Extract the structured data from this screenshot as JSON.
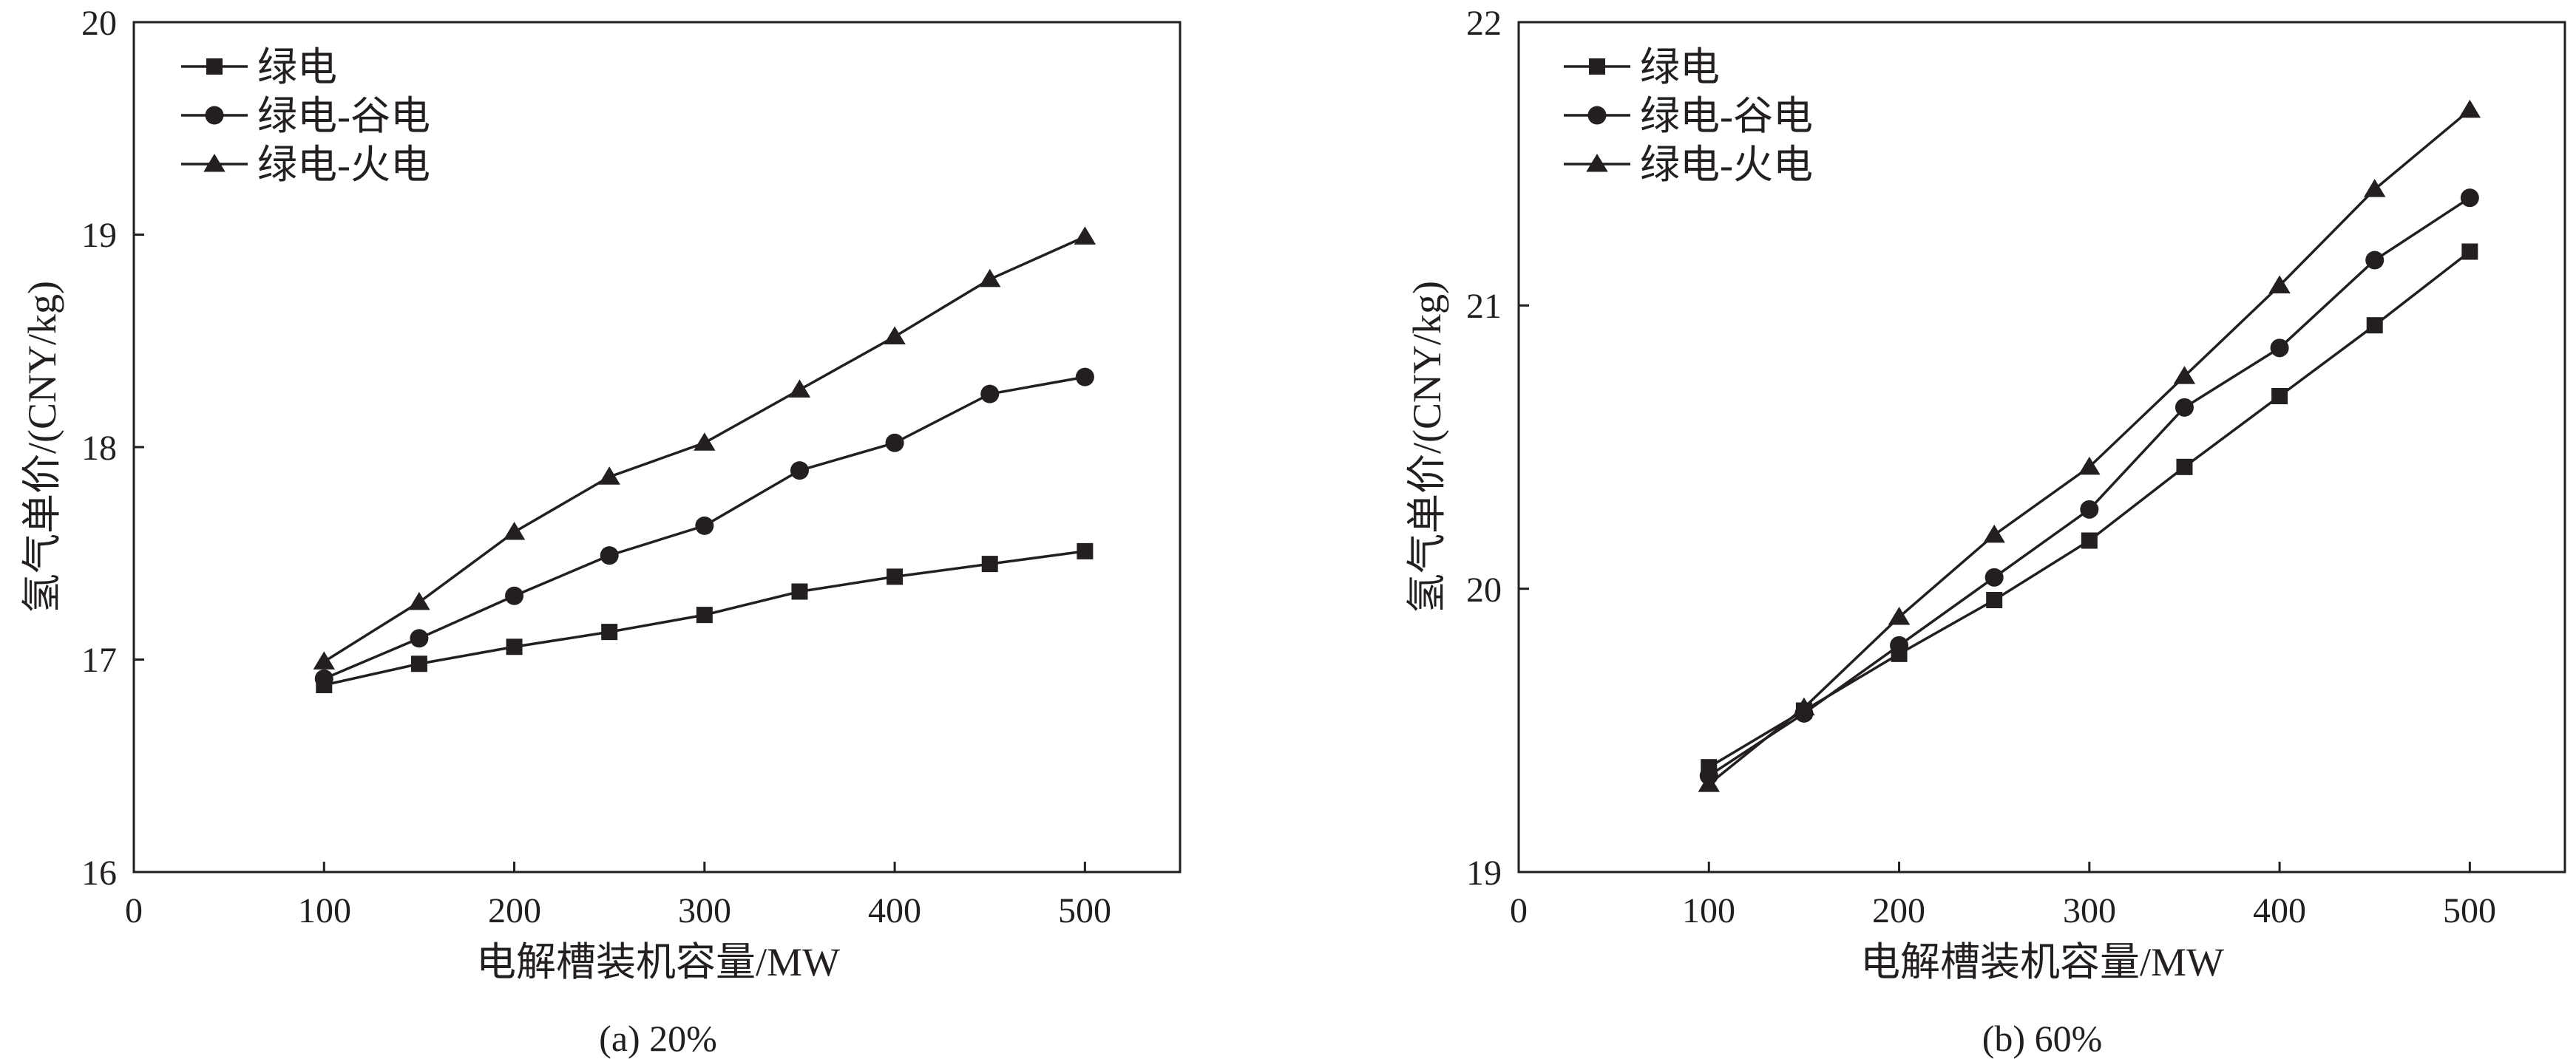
{
  "chart_data": [
    {
      "type": "line",
      "caption": "(a) 20%",
      "xlabel": "电解槽装机容量/MW",
      "ylabel": "氢气单价/(CNY/kg)",
      "xlim": [
        0,
        550
      ],
      "ylim": [
        16,
        20
      ],
      "xticks": [
        0,
        100,
        200,
        300,
        400,
        500
      ],
      "yticks": [
        16,
        17,
        18,
        19,
        20
      ],
      "legend_position": "top-left",
      "x": [
        100,
        150,
        200,
        250,
        300,
        350,
        400,
        450,
        500
      ],
      "series": [
        {
          "name": "绿电",
          "marker": "square",
          "values": [
            16.88,
            16.98,
            17.06,
            17.13,
            17.21,
            17.32,
            17.39,
            17.45,
            17.51
          ]
        },
        {
          "name": "绿电-谷电",
          "marker": "circle",
          "values": [
            16.91,
            17.1,
            17.3,
            17.49,
            17.63,
            17.89,
            18.02,
            18.25,
            18.33
          ]
        },
        {
          "name": "绿电-火电",
          "marker": "triangle",
          "values": [
            16.99,
            17.27,
            17.6,
            17.86,
            18.02,
            18.27,
            18.52,
            18.79,
            18.99
          ]
        }
      ]
    },
    {
      "type": "line",
      "caption": "(b) 60%",
      "xlabel": "电解槽装机容量/MW",
      "ylabel": "氢气单价/(CNY/kg)",
      "xlim": [
        0,
        550
      ],
      "ylim": [
        19,
        22
      ],
      "xticks": [
        0,
        100,
        200,
        300,
        400,
        500
      ],
      "yticks": [
        19,
        20,
        21,
        22
      ],
      "legend_position": "top-left",
      "x": [
        100,
        150,
        200,
        250,
        300,
        350,
        400,
        450,
        500
      ],
      "series": [
        {
          "name": "绿电",
          "marker": "square",
          "values": [
            19.37,
            19.57,
            19.77,
            19.96,
            20.17,
            20.43,
            20.68,
            20.93,
            21.19
          ]
        },
        {
          "name": "绿电-谷电",
          "marker": "circle",
          "values": [
            19.34,
            19.56,
            19.8,
            20.04,
            20.28,
            20.64,
            20.85,
            21.16,
            21.38
          ]
        },
        {
          "name": "绿电-火电",
          "marker": "triangle",
          "values": [
            19.31,
            19.58,
            19.9,
            20.19,
            20.43,
            20.75,
            21.07,
            21.41,
            21.69
          ]
        }
      ]
    }
  ],
  "colors": {
    "ink": "#231f20",
    "background": "#ffffff"
  }
}
